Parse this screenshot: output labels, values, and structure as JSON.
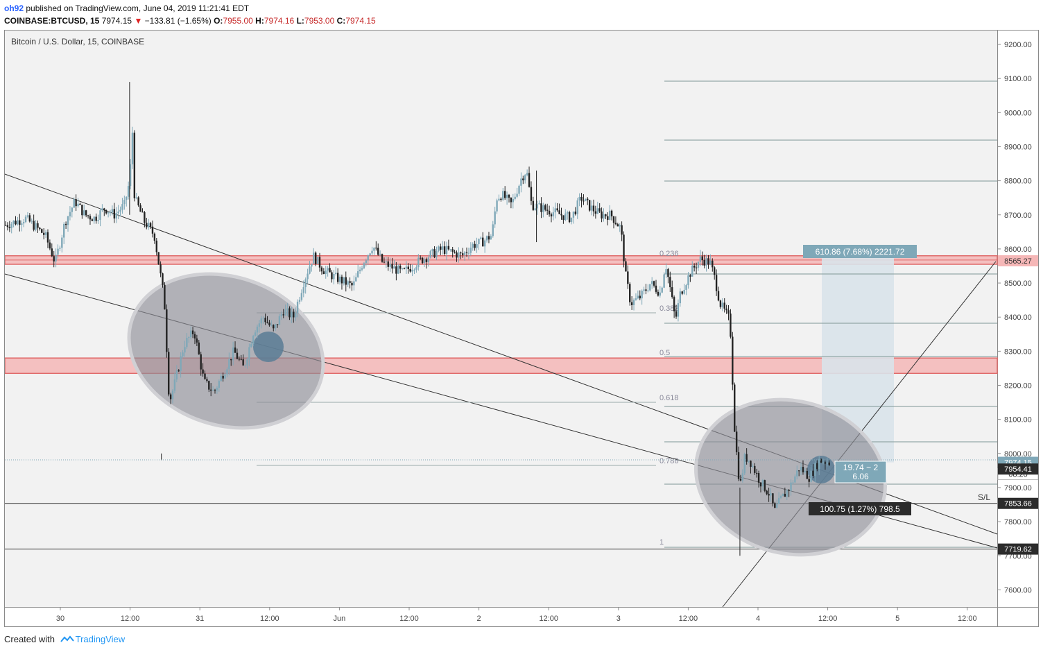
{
  "header": {
    "author": "oh92",
    "published_text": "published on TradingView.com, June 04, 2019 11:21:41 EDT",
    "symbol": "COINBASE:BTCUSD, 15",
    "last": "7974.15",
    "change_arrow": "▼",
    "change": "−133.81 (−1.65%)",
    "o_label": "O:",
    "o_value": "7955.00",
    "h_label": "H:",
    "h_value": "7974.16",
    "l_label": "L:",
    "l_value": "7953.00",
    "c_label": "C:",
    "c_value": "7974.15"
  },
  "chart_title": "Bitcoin / U.S. Dollar, 15, COINBASE",
  "footer": {
    "created_with": "Created with",
    "brand": "TradingView",
    "logo_icon": "tradingview-logo-icon"
  },
  "colors": {
    "background": "#f2f2f2",
    "zone_fill": "#f5b7b7",
    "zone_stroke": "#e06a6a",
    "ellipse": "#8e8e96",
    "bull": "#7fa8b8",
    "bear": "#222222",
    "measure": "#d9e3ea",
    "measure_label": "#7fa8b8"
  },
  "chart_data": {
    "type": "candlestick",
    "y_axis": {
      "ticks": [
        "9200.00",
        "9100.00",
        "9000.00",
        "8900.00",
        "8800.00",
        "8700.00",
        "8600.00",
        "8500.00",
        "8400.00",
        "8300.00",
        "8200.00",
        "8100.00",
        "8000.00",
        "7900.00",
        "7800.00",
        "7700.00",
        "7600.00"
      ]
    },
    "x_axis": {
      "ticks": [
        "30",
        "12:00",
        "31",
        "12:00",
        "Jun",
        "12:00",
        "2",
        "12:00",
        "3",
        "12:00",
        "4",
        "12:00",
        "5",
        "12:00"
      ]
    },
    "price_labels": [
      {
        "value": "8565.27",
        "style": "red"
      },
      {
        "value": "7974.15",
        "style": "blue"
      },
      {
        "value": "08:20",
        "style": "countdown"
      },
      {
        "value": "7954.41",
        "style": "dark"
      },
      {
        "value": "7853.66",
        "style": "dark"
      },
      {
        "value": "7719.62",
        "style": "dark"
      }
    ],
    "sl_label": "S/L",
    "fib_levels": [
      "0.236",
      "0.382",
      "0.5",
      "0.618",
      "0.786",
      "1"
    ],
    "measure_up_label": "610.86 (7.68%) 2221.72",
    "measure_mid_label_1": "19.74 ~ 2",
    "measure_mid_label_2": "6.06",
    "measure_down_label": "100.75 (1.27%) 798.5",
    "zones": [
      {
        "from": 8555,
        "to": 8580
      },
      {
        "from": 8235,
        "to": 8280
      }
    ],
    "horizontal_lines": [
      7853.66,
      7719.62
    ],
    "price_path": [
      [
        0.0,
        8670
      ],
      [
        0.02,
        8690
      ],
      [
        0.04,
        8640
      ],
      [
        0.05,
        8560
      ],
      [
        0.06,
        8680
      ],
      [
        0.07,
        8740
      ],
      [
        0.08,
        8700
      ],
      [
        0.09,
        8690
      ],
      [
        0.1,
        8720
      ],
      [
        0.11,
        8700
      ],
      [
        0.12,
        8730
      ],
      [
        0.125,
        8800
      ],
      [
        0.128,
        8950
      ],
      [
        0.13,
        8750
      ],
      [
        0.14,
        8680
      ],
      [
        0.15,
        8640
      ],
      [
        0.16,
        8450
      ],
      [
        0.165,
        8150
      ],
      [
        0.17,
        8200
      ],
      [
        0.18,
        8320
      ],
      [
        0.19,
        8360
      ],
      [
        0.2,
        8210
      ],
      [
        0.21,
        8180
      ],
      [
        0.22,
        8240
      ],
      [
        0.23,
        8300
      ],
      [
        0.24,
        8250
      ],
      [
        0.25,
        8360
      ],
      [
        0.26,
        8400
      ],
      [
        0.27,
        8360
      ],
      [
        0.28,
        8420
      ],
      [
        0.29,
        8400
      ],
      [
        0.3,
        8500
      ],
      [
        0.31,
        8580
      ],
      [
        0.32,
        8540
      ],
      [
        0.33,
        8520
      ],
      [
        0.35,
        8490
      ],
      [
        0.36,
        8560
      ],
      [
        0.37,
        8610
      ],
      [
        0.38,
        8560
      ],
      [
        0.4,
        8530
      ],
      [
        0.42,
        8570
      ],
      [
        0.44,
        8600
      ],
      [
        0.46,
        8580
      ],
      [
        0.47,
        8610
      ],
      [
        0.48,
        8620
      ],
      [
        0.49,
        8640
      ],
      [
        0.495,
        8750
      ],
      [
        0.5,
        8760
      ],
      [
        0.51,
        8730
      ],
      [
        0.52,
        8810
      ],
      [
        0.525,
        8830
      ],
      [
        0.53,
        8730
      ],
      [
        0.54,
        8720
      ],
      [
        0.55,
        8710
      ],
      [
        0.56,
        8700
      ],
      [
        0.57,
        8690
      ],
      [
        0.58,
        8750
      ],
      [
        0.59,
        8720
      ],
      [
        0.6,
        8700
      ],
      [
        0.61,
        8700
      ],
      [
        0.62,
        8660
      ],
      [
        0.625,
        8520
      ],
      [
        0.63,
        8440
      ],
      [
        0.64,
        8460
      ],
      [
        0.65,
        8500
      ],
      [
        0.66,
        8470
      ],
      [
        0.665,
        8560
      ],
      [
        0.67,
        8480
      ],
      [
        0.675,
        8390
      ],
      [
        0.68,
        8470
      ],
      [
        0.69,
        8530
      ],
      [
        0.7,
        8570
      ],
      [
        0.71,
        8560
      ],
      [
        0.715,
        8510
      ],
      [
        0.72,
        8440
      ],
      [
        0.73,
        8390
      ],
      [
        0.735,
        8050
      ],
      [
        0.74,
        7900
      ],
      [
        0.745,
        7990
      ],
      [
        0.75,
        7980
      ],
      [
        0.76,
        7920
      ],
      [
        0.77,
        7880
      ],
      [
        0.775,
        7830
      ],
      [
        0.78,
        7860
      ],
      [
        0.79,
        7900
      ],
      [
        0.8,
        7960
      ],
      [
        0.81,
        7930
      ],
      [
        0.82,
        7980
      ],
      [
        0.83,
        7975
      ]
    ]
  }
}
